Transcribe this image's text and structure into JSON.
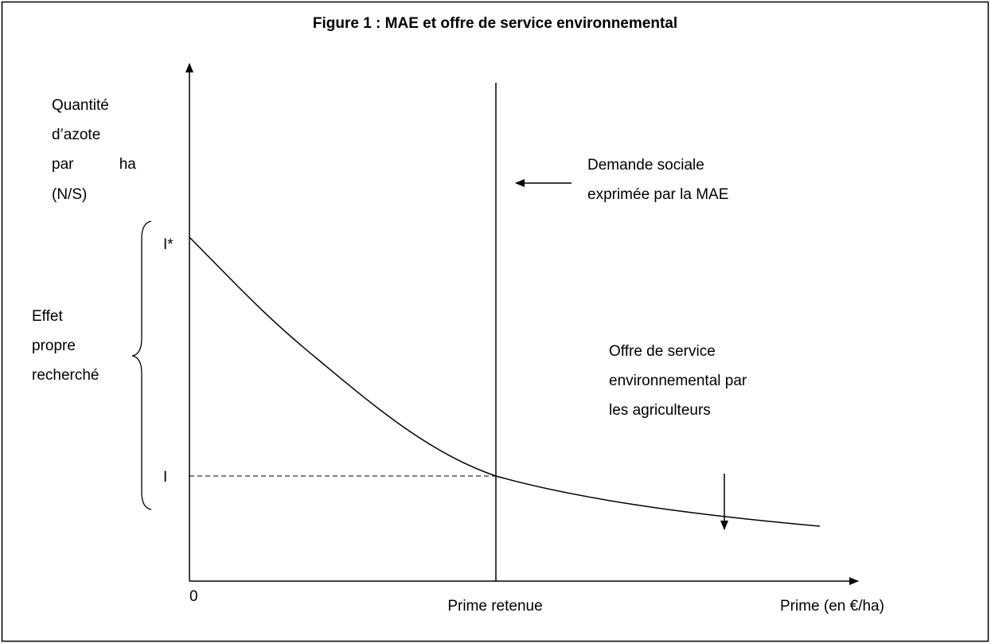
{
  "title": "Figure 1 : MAE et offre de service environnemental",
  "y_axis_label": [
    "Quantité",
    "d’azote",
    "par ha",
    "(N/S)"
  ],
  "y_marks": {
    "top": "I*",
    "bottom": "I"
  },
  "origin": "0",
  "brace_label": [
    "Effet",
    "propre",
    "recherché"
  ],
  "demand_label": [
    "Demande sociale",
    "exprimée par la MAE"
  ],
  "supply_label": [
    "Offre de service",
    "environnemental par",
    "les agriculteurs"
  ],
  "x_mark": "Prime retenue",
  "x_axis_label": "Prime (en €/ha)"
}
